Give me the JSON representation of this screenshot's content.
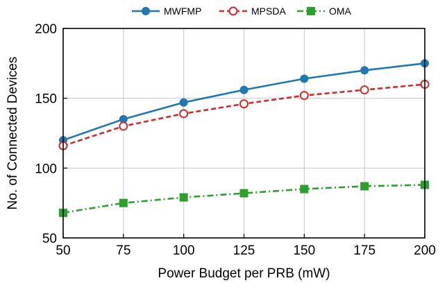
{
  "chart_data": {
    "type": "line",
    "xlabel": "Power Budget per PRB (mW)",
    "ylabel": "No. of Connected Devices",
    "x": [
      50,
      75,
      100,
      125,
      150,
      175,
      200
    ],
    "xlim": [
      50,
      200
    ],
    "ylim": [
      50,
      200
    ],
    "xticks": [
      50,
      75,
      100,
      125,
      150,
      175,
      200
    ],
    "yticks": [
      50,
      100,
      150,
      200
    ],
    "grid": true,
    "legend_position": "top-center",
    "series": [
      {
        "name": "MWFMP",
        "values": [
          120,
          135,
          147,
          156,
          164,
          170,
          175
        ],
        "color": "#1f77b4",
        "line_style": "solid",
        "marker": "filled-circle"
      },
      {
        "name": "MPSDA",
        "values": [
          116,
          130,
          139,
          146,
          152,
          156,
          160
        ],
        "color": "#d62728",
        "line_style": "dashed",
        "marker": "open-circle"
      },
      {
        "name": "OMA",
        "values": [
          68,
          75,
          79,
          82,
          85,
          87,
          88
        ],
        "color": "#2ca02c",
        "line_style": "dash-dot",
        "marker": "filled-square"
      }
    ]
  }
}
